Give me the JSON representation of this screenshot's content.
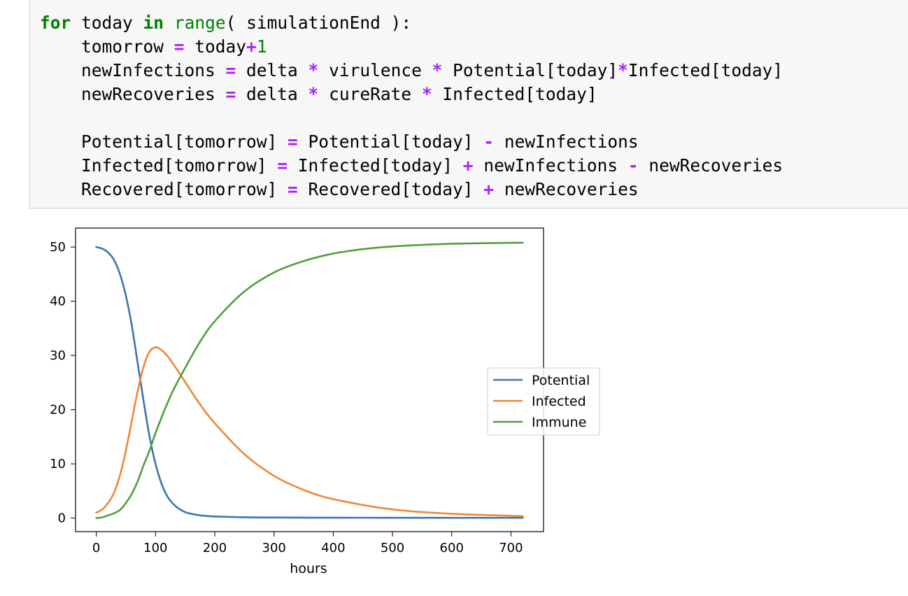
{
  "code_cell": {
    "lines": [
      [
        {
          "t": "for",
          "c": "kw"
        },
        {
          "t": " today "
        },
        {
          "t": "in",
          "c": "kw"
        },
        {
          "t": " "
        },
        {
          "t": "range",
          "c": "bi"
        },
        {
          "t": "( simulationEnd ):"
        }
      ],
      [
        {
          "t": "    tomorrow "
        },
        {
          "t": "=",
          "c": "op"
        },
        {
          "t": " today"
        },
        {
          "t": "+",
          "c": "op"
        },
        {
          "t": "1",
          "c": "num"
        }
      ],
      [
        {
          "t": "    newInfections "
        },
        {
          "t": "=",
          "c": "op"
        },
        {
          "t": " delta "
        },
        {
          "t": "*",
          "c": "op"
        },
        {
          "t": " virulence "
        },
        {
          "t": "*",
          "c": "op"
        },
        {
          "t": " Potential[today]"
        },
        {
          "t": "*",
          "c": "op"
        },
        {
          "t": "Infected[today]"
        }
      ],
      [
        {
          "t": "    newRecoveries "
        },
        {
          "t": "=",
          "c": "op"
        },
        {
          "t": " delta "
        },
        {
          "t": "*",
          "c": "op"
        },
        {
          "t": " cureRate "
        },
        {
          "t": "*",
          "c": "op"
        },
        {
          "t": " Infected[today]"
        }
      ],
      [
        {
          "t": ""
        }
      ],
      [
        {
          "t": "    Potential[tomorrow] "
        },
        {
          "t": "=",
          "c": "op"
        },
        {
          "t": " Potential[today] "
        },
        {
          "t": "-",
          "c": "op"
        },
        {
          "t": " newInfections"
        }
      ],
      [
        {
          "t": "    Infected[tomorrow] "
        },
        {
          "t": "=",
          "c": "op"
        },
        {
          "t": " Infected[today] "
        },
        {
          "t": "+",
          "c": "op"
        },
        {
          "t": " newInfections "
        },
        {
          "t": "-",
          "c": "op"
        },
        {
          "t": " newRecoveries"
        }
      ],
      [
        {
          "t": "    Recovered[tomorrow] "
        },
        {
          "t": "=",
          "c": "op"
        },
        {
          "t": " Recovered[today] "
        },
        {
          "t": "+",
          "c": "op"
        },
        {
          "t": " newRecoveries"
        }
      ]
    ]
  },
  "colors": {
    "potential": "#3b75af",
    "infected": "#ef8636",
    "immune": "#519e3e"
  },
  "chart_data": {
    "type": "line",
    "xlabel": "hours",
    "ylabel": "",
    "xlim": [
      -35,
      755
    ],
    "ylim": [
      -2.5,
      53.5
    ],
    "xticks": [
      0,
      100,
      200,
      300,
      400,
      500,
      600,
      700
    ],
    "yticks": [
      0,
      10,
      20,
      30,
      40,
      50
    ],
    "grid": false,
    "legend_position": "center-right",
    "series": [
      {
        "name": "Potential",
        "color": "#3b75af",
        "x": [
          0,
          10,
          20,
          30,
          40,
          50,
          60,
          70,
          80,
          90,
          100,
          110,
          120,
          130,
          140,
          150,
          160,
          180,
          200,
          250,
          300,
          400,
          500,
          600,
          720
        ],
        "y": [
          50,
          49.7,
          49,
          47.6,
          45,
          41,
          35.5,
          28.5,
          21.5,
          15,
          10,
          6.4,
          4,
          2.6,
          1.7,
          1.1,
          0.8,
          0.45,
          0.3,
          0.15,
          0.1,
          0.07,
          0.06,
          0.05,
          0.05
        ]
      },
      {
        "name": "Infected",
        "color": "#ef8636",
        "x": [
          0,
          10,
          20,
          30,
          40,
          50,
          60,
          70,
          80,
          90,
          100,
          110,
          120,
          130,
          140,
          150,
          175,
          200,
          250,
          300,
          350,
          400,
          500,
          600,
          720
        ],
        "y": [
          1,
          1.6,
          2.8,
          4.7,
          7.9,
          12.5,
          18,
          23.5,
          28,
          30.7,
          31.5,
          31,
          29.9,
          28.4,
          26.8,
          25.1,
          21,
          17.5,
          11.8,
          7.8,
          5.2,
          3.5,
          1.6,
          0.8,
          0.35
        ]
      },
      {
        "name": "Immune",
        "color": "#519e3e",
        "x": [
          0,
          10,
          20,
          30,
          40,
          50,
          60,
          70,
          80,
          90,
          100,
          110,
          120,
          130,
          140,
          150,
          175,
          200,
          250,
          300,
          350,
          400,
          450,
          500,
          550,
          600,
          650,
          720
        ],
        "y": [
          0,
          0.15,
          0.5,
          0.9,
          1.5,
          2.8,
          4.5,
          6.8,
          9.8,
          12.5,
          15.7,
          18.5,
          21.2,
          23.6,
          25.7,
          27.7,
          32.5,
          36.3,
          41.8,
          45.3,
          47.4,
          48.8,
          49.6,
          50.1,
          50.4,
          50.6,
          50.7,
          50.8
        ]
      }
    ]
  }
}
